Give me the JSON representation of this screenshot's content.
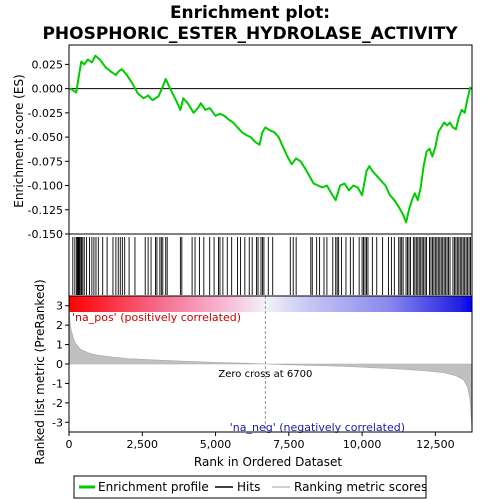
{
  "chart_data": {
    "type": "line",
    "title_line1": "Enrichment plot:",
    "title_line2": "PHOSPHORIC_ESTER_HYDROLASE_ACTIVITY",
    "xlabel": "Rank in Ordered Dataset",
    "ylabel_top": "Enrichment score (ES)",
    "ylabel_bottom": "Ranked list metric (PreRanked)",
    "xlim": [
      0,
      13750
    ],
    "x_ticks": [
      0,
      2500,
      5000,
      7500,
      10000,
      12500
    ],
    "x_tick_labels": [
      "0",
      "2,500",
      "5,000",
      "7,500",
      "10,000",
      "12,500"
    ],
    "es_ylim": [
      -0.15,
      0.045
    ],
    "es_ticks": [
      0.025,
      0.0,
      -0.025,
      -0.05,
      -0.075,
      -0.1,
      -0.125,
      -0.15
    ],
    "es_tick_labels": [
      "0.025",
      "0.000",
      "-0.025",
      "-0.050",
      "-0.075",
      "-0.100",
      "-0.125",
      "-0.150"
    ],
    "metric_ylim": [
      -3.5,
      3.5
    ],
    "metric_ticks": [
      3,
      2,
      1,
      0,
      -1,
      -2,
      -3
    ],
    "metric_tick_labels": [
      "3",
      "2",
      "1",
      "0",
      "-1",
      "-2",
      "-3"
    ],
    "zero_cross": 6700,
    "zero_cross_label": "Zero cross at 6700",
    "pos_label": "'na_pos' (positively correlated)",
    "neg_label": "'na_neg' (negatively correlated)",
    "legend": {
      "enrichment": "Enrichment profile",
      "hits": "Hits",
      "ranking": "Ranking metric scores"
    },
    "colors": {
      "enrichment": "#00cc00",
      "hits": "#000000",
      "ranking": "#c0c0c0",
      "pos": "#ff0000",
      "neg": "#0000ff"
    },
    "es_profile": [
      [
        0,
        0.0
      ],
      [
        100,
        -0.001
      ],
      [
        250,
        -0.004
      ],
      [
        330,
        0.012
      ],
      [
        420,
        0.028
      ],
      [
        520,
        0.025
      ],
      [
        640,
        0.03
      ],
      [
        780,
        0.027
      ],
      [
        900,
        0.034
      ],
      [
        1050,
        0.03
      ],
      [
        1250,
        0.022
      ],
      [
        1450,
        0.017
      ],
      [
        1600,
        0.014
      ],
      [
        1700,
        0.018
      ],
      [
        1800,
        0.02
      ],
      [
        1950,
        0.015
      ],
      [
        2150,
        0.006
      ],
      [
        2350,
        -0.005
      ],
      [
        2550,
        -0.01
      ],
      [
        2700,
        -0.007
      ],
      [
        2850,
        -0.012
      ],
      [
        3050,
        -0.008
      ],
      [
        3200,
        0.002
      ],
      [
        3300,
        0.01
      ],
      [
        3450,
        0.0
      ],
      [
        3650,
        -0.012
      ],
      [
        3800,
        -0.022
      ],
      [
        3900,
        -0.01
      ],
      [
        4050,
        -0.015
      ],
      [
        4250,
        -0.025
      ],
      [
        4400,
        -0.02
      ],
      [
        4500,
        -0.015
      ],
      [
        4650,
        -0.022
      ],
      [
        4800,
        -0.02
      ],
      [
        5000,
        -0.028
      ],
      [
        5150,
        -0.026
      ],
      [
        5300,
        -0.028
      ],
      [
        5450,
        -0.032
      ],
      [
        5600,
        -0.035
      ],
      [
        5750,
        -0.04
      ],
      [
        5900,
        -0.045
      ],
      [
        6050,
        -0.048
      ],
      [
        6200,
        -0.05
      ],
      [
        6350,
        -0.055
      ],
      [
        6500,
        -0.058
      ],
      [
        6600,
        -0.045
      ],
      [
        6700,
        -0.04
      ],
      [
        6850,
        -0.043
      ],
      [
        7000,
        -0.045
      ],
      [
        7150,
        -0.05
      ],
      [
        7300,
        -0.06
      ],
      [
        7450,
        -0.07
      ],
      [
        7600,
        -0.078
      ],
      [
        7750,
        -0.072
      ],
      [
        7900,
        -0.075
      ],
      [
        8050,
        -0.082
      ],
      [
        8200,
        -0.09
      ],
      [
        8350,
        -0.098
      ],
      [
        8500,
        -0.1
      ],
      [
        8650,
        -0.102
      ],
      [
        8800,
        -0.1
      ],
      [
        8950,
        -0.108
      ],
      [
        9100,
        -0.115
      ],
      [
        9250,
        -0.1
      ],
      [
        9400,
        -0.098
      ],
      [
        9550,
        -0.105
      ],
      [
        9700,
        -0.1
      ],
      [
        9850,
        -0.102
      ],
      [
        10000,
        -0.11
      ],
      [
        10150,
        -0.085
      ],
      [
        10250,
        -0.08
      ],
      [
        10350,
        -0.085
      ],
      [
        10500,
        -0.09
      ],
      [
        10650,
        -0.095
      ],
      [
        10800,
        -0.1
      ],
      [
        10950,
        -0.11
      ],
      [
        11100,
        -0.115
      ],
      [
        11250,
        -0.122
      ],
      [
        11400,
        -0.13
      ],
      [
        11500,
        -0.138
      ],
      [
        11600,
        -0.125
      ],
      [
        11700,
        -0.115
      ],
      [
        11800,
        -0.108
      ],
      [
        11900,
        -0.115
      ],
      [
        12000,
        -0.102
      ],
      [
        12100,
        -0.08
      ],
      [
        12200,
        -0.065
      ],
      [
        12300,
        -0.062
      ],
      [
        12400,
        -0.07
      ],
      [
        12500,
        -0.06
      ],
      [
        12600,
        -0.045
      ],
      [
        12700,
        -0.04
      ],
      [
        12800,
        -0.035
      ],
      [
        12900,
        -0.038
      ],
      [
        13000,
        -0.035
      ],
      [
        13100,
        -0.04
      ],
      [
        13200,
        -0.042
      ],
      [
        13300,
        -0.03
      ],
      [
        13400,
        -0.022
      ],
      [
        13500,
        -0.025
      ],
      [
        13600,
        -0.01
      ],
      [
        13700,
        0.002
      ]
    ],
    "hits": [
      130,
      200,
      260,
      290,
      310,
      330,
      360,
      400,
      430,
      470,
      520,
      600,
      700,
      780,
      850,
      920,
      1000,
      1150,
      1300,
      1500,
      1600,
      1680,
      1750,
      1820,
      1900,
      2050,
      2250,
      2600,
      2700,
      2800,
      2950,
      3000,
      3100,
      3150,
      3200,
      3300,
      3350,
      3800,
      3850,
      4200,
      4300,
      4450,
      4600,
      4800,
      4950,
      5100,
      5150,
      5250,
      5400,
      5550,
      5750,
      5850,
      6000,
      6150,
      6250,
      6400,
      6450,
      6550,
      6600,
      6650,
      6800,
      6950,
      7550,
      7650,
      7750,
      8250,
      8300,
      8450,
      8550,
      8700,
      8800,
      9000,
      9100,
      9150,
      9200,
      9300,
      9450,
      9600,
      9700,
      9900,
      10000,
      10050,
      10100,
      10150,
      10200,
      10350,
      10500,
      10700,
      10900,
      11000,
      11100,
      11250,
      11300,
      11350,
      11400,
      11500,
      11550,
      11600,
      11650,
      11750,
      11800,
      11850,
      11900,
      11950,
      12000,
      12050,
      12100,
      12150,
      12200,
      12300,
      12350,
      12400,
      12450,
      12500,
      12550,
      12600,
      12650,
      12700,
      12750,
      12800,
      12850,
      12900,
      12950,
      13000,
      13100,
      13150,
      13200,
      13250,
      13300,
      13350,
      13400,
      13450,
      13500,
      13550,
      13600,
      13650,
      13700
    ],
    "metric_curve": [
      [
        0,
        3.2
      ],
      [
        30,
        2.2
      ],
      [
        80,
        1.7
      ],
      [
        200,
        1.1
      ],
      [
        400,
        0.75
      ],
      [
        700,
        0.55
      ],
      [
        1000,
        0.45
      ],
      [
        1500,
        0.35
      ],
      [
        2000,
        0.28
      ],
      [
        3000,
        0.2
      ],
      [
        4000,
        0.14
      ],
      [
        5000,
        0.08
      ],
      [
        6000,
        0.04
      ],
      [
        6700,
        0.0
      ],
      [
        7500,
        -0.04
      ],
      [
        8500,
        -0.08
      ],
      [
        9500,
        -0.13
      ],
      [
        10500,
        -0.2
      ],
      [
        11500,
        -0.28
      ],
      [
        12200,
        -0.36
      ],
      [
        12800,
        -0.45
      ],
      [
        13200,
        -0.6
      ],
      [
        13450,
        -0.8
      ],
      [
        13600,
        -1.2
      ],
      [
        13680,
        -1.8
      ],
      [
        13720,
        -2.6
      ],
      [
        13750,
        -3.4
      ]
    ]
  }
}
